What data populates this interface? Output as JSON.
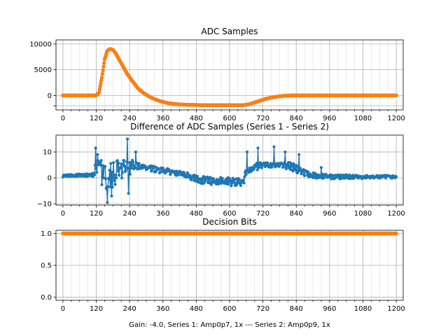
{
  "colors": {
    "series1": "#1f77b4",
    "series2": "#ff7f0e",
    "grid": "#cccccc",
    "axis": "#000000"
  },
  "footer_label": "Gain: -4.0, Series 1: Amp0p7, 1x --- Series 2: Amp0p9, 1x",
  "chart_data": [
    {
      "id": "adc",
      "type": "line",
      "title": "ADC Samples",
      "xlim": [
        -25,
        1225
      ],
      "ylim": [
        -2800,
        10800
      ],
      "xticks": [
        0,
        120,
        240,
        360,
        480,
        600,
        720,
        840,
        960,
        1080,
        1200
      ],
      "xtick_labels": [
        "0",
        "120",
        "240",
        "360",
        "480",
        "600",
        "720",
        "840",
        "960",
        "1080",
        "1200"
      ],
      "minor_xtick_step": 30,
      "yticks": [
        -2000,
        0,
        5000,
        10000
      ],
      "ytick_labels": [
        "",
        "0",
        "5000",
        "10000"
      ],
      "grid": true,
      "series": [
        {
          "name": "Series 1",
          "color": "#1f77b4",
          "marker": "dot",
          "points": [
            [
              0,
              0
            ],
            [
              100,
              0
            ],
            [
              120,
              0
            ],
            [
              130,
              600
            ],
            [
              140,
              3500
            ],
            [
              150,
              7000
            ],
            [
              160,
              8700
            ],
            [
              170,
              9050
            ],
            [
              180,
              8900
            ],
            [
              190,
              8200
            ],
            [
              200,
              7200
            ],
            [
              215,
              5800
            ],
            [
              230,
              4300
            ],
            [
              250,
              2800
            ],
            [
              270,
              1400
            ],
            [
              290,
              500
            ],
            [
              310,
              -200
            ],
            [
              330,
              -700
            ],
            [
              350,
              -1100
            ],
            [
              380,
              -1500
            ],
            [
              420,
              -1750
            ],
            [
              480,
              -1850
            ],
            [
              560,
              -1880
            ],
            [
              620,
              -1880
            ],
            [
              650,
              -1860
            ],
            [
              670,
              -1700
            ],
            [
              690,
              -1350
            ],
            [
              710,
              -1000
            ],
            [
              730,
              -650
            ],
            [
              750,
              -400
            ],
            [
              780,
              -150
            ],
            [
              800,
              -50
            ],
            [
              820,
              0
            ],
            [
              1200,
              0
            ]
          ]
        },
        {
          "name": "Series 2",
          "color": "#ff7f0e",
          "marker": "dot",
          "points": [
            [
              0,
              0
            ],
            [
              100,
              0
            ],
            [
              120,
              0
            ],
            [
              130,
              600
            ],
            [
              140,
              3500
            ],
            [
              150,
              7000
            ],
            [
              160,
              8700
            ],
            [
              170,
              9050
            ],
            [
              180,
              8900
            ],
            [
              190,
              8200
            ],
            [
              200,
              7200
            ],
            [
              215,
              5800
            ],
            [
              230,
              4300
            ],
            [
              250,
              2800
            ],
            [
              270,
              1400
            ],
            [
              290,
              500
            ],
            [
              310,
              -200
            ],
            [
              330,
              -700
            ],
            [
              350,
              -1100
            ],
            [
              380,
              -1500
            ],
            [
              420,
              -1750
            ],
            [
              480,
              -1850
            ],
            [
              560,
              -1880
            ],
            [
              620,
              -1880
            ],
            [
              650,
              -1860
            ],
            [
              670,
              -1700
            ],
            [
              690,
              -1350
            ],
            [
              710,
              -1000
            ],
            [
              730,
              -650
            ],
            [
              750,
              -400
            ],
            [
              780,
              -150
            ],
            [
              800,
              -50
            ],
            [
              820,
              0
            ],
            [
              1200,
              0
            ]
          ]
        }
      ]
    },
    {
      "id": "diff",
      "type": "line",
      "title": "Difference of ADC Samples (Series 1 - Series 2)",
      "xlim": [
        -25,
        1225
      ],
      "ylim": [
        -10.5,
        16.5
      ],
      "xticks": [
        0,
        120,
        240,
        360,
        480,
        600,
        720,
        840,
        960,
        1080,
        1200
      ],
      "xtick_labels": [
        "0",
        "120",
        "240",
        "360",
        "480",
        "600",
        "720",
        "840",
        "960",
        "1080",
        "1200"
      ],
      "minor_xtick_step": 30,
      "yticks": [
        -10,
        0,
        10
      ],
      "ytick_labels": [
        "−10",
        "0",
        "10"
      ],
      "grid": true,
      "series": [
        {
          "name": "Series 1 - Series 2",
          "color": "#1f77b4",
          "marker": "dot",
          "envelope": [
            [
              0,
              0.3,
              1.2
            ],
            [
              60,
              0.5,
              1.5
            ],
            [
              110,
              0.5,
              1.8
            ],
            [
              120,
              1,
              7
            ],
            [
              140,
              -3,
              7
            ],
            [
              160,
              -5,
              6
            ],
            [
              180,
              -4,
              6
            ],
            [
              200,
              -2,
              7
            ],
            [
              220,
              0,
              7
            ],
            [
              240,
              1,
              8
            ],
            [
              260,
              3,
              6
            ],
            [
              300,
              3,
              5
            ],
            [
              340,
              2,
              4.5
            ],
            [
              400,
              1,
              3
            ],
            [
              450,
              0,
              2
            ],
            [
              480,
              -2,
              1
            ],
            [
              520,
              -2.5,
              0.5
            ],
            [
              600,
              -3,
              0.3
            ],
            [
              650,
              -3.5,
              0.5
            ],
            [
              660,
              1,
              4
            ],
            [
              700,
              3,
              6
            ],
            [
              760,
              4,
              6
            ],
            [
              820,
              3,
              6
            ],
            [
              860,
              1,
              4
            ],
            [
              900,
              0,
              2
            ],
            [
              960,
              -0.5,
              1.2
            ],
            [
              1200,
              -0.3,
              1.0
            ]
          ],
          "spikes": [
            [
              118,
              11.5
            ],
            [
              125,
              9
            ],
            [
              160,
              -9.5
            ],
            [
              175,
              -7
            ],
            [
              232,
              15
            ],
            [
              236,
              -6
            ],
            [
              262,
              10
            ],
            [
              663,
              10
            ],
            [
              702,
              11.5
            ],
            [
              760,
              12
            ],
            [
              800,
              10
            ],
            [
              850,
              9
            ],
            [
              930,
              4
            ]
          ]
        }
      ]
    },
    {
      "id": "bits",
      "type": "line",
      "title": "Decision Bits",
      "xlabel": "Gain: -4.0, Series 1: Amp0p7, 1x --- Series 2: Amp0p9, 1x",
      "xlim": [
        -25,
        1225
      ],
      "ylim": [
        -0.05,
        1.05
      ],
      "xticks": [
        0,
        120,
        240,
        360,
        480,
        600,
        720,
        840,
        960,
        1080,
        1200
      ],
      "xtick_labels": [
        "0",
        "120",
        "240",
        "360",
        "480",
        "600",
        "720",
        "840",
        "960",
        "1080",
        "1200"
      ],
      "minor_xtick_step": 30,
      "yticks": [
        0.0,
        0.5,
        1.0
      ],
      "ytick_labels": [
        "0.0",
        "0.5",
        "1.0"
      ],
      "grid": true,
      "series": [
        {
          "name": "Series 1",
          "color": "#1f77b4",
          "marker": "dot",
          "points": [
            [
              0,
              1
            ],
            [
              1200,
              1
            ]
          ]
        },
        {
          "name": "Series 2",
          "color": "#ff7f0e",
          "marker": "dot",
          "points": [
            [
              0,
              1
            ],
            [
              1200,
              1
            ]
          ]
        }
      ]
    }
  ]
}
